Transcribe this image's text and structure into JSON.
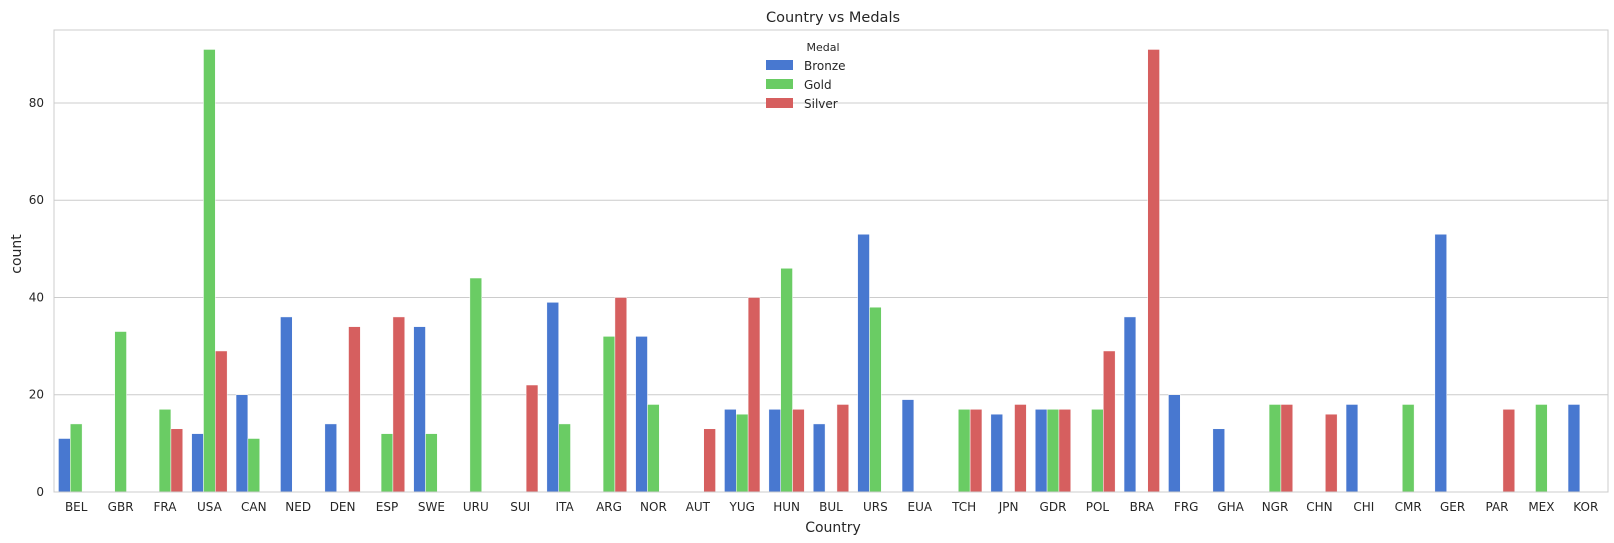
{
  "chart_data": {
    "type": "bar",
    "title": "Country vs Medals",
    "xlabel": "Country",
    "ylabel": "count",
    "ylim": [
      0,
      95
    ],
    "yticks": [
      0,
      20,
      40,
      60,
      80
    ],
    "grid": "horizontal",
    "legend": {
      "title": "Medal",
      "placement": "top-center"
    },
    "categories": [
      "BEL",
      "GBR",
      "FRA",
      "USA",
      "CAN",
      "NED",
      "DEN",
      "ESP",
      "SWE",
      "URU",
      "SUI",
      "ITA",
      "ARG",
      "NOR",
      "AUT",
      "YUG",
      "HUN",
      "BUL",
      "URS",
      "EUA",
      "TCH",
      "JPN",
      "GDR",
      "POL",
      "BRA",
      "FRG",
      "GHA",
      "NGR",
      "CHN",
      "CHI",
      "CMR",
      "GER",
      "PAR",
      "MEX",
      "KOR"
    ],
    "series": [
      {
        "name": "Bronze",
        "color": "#4878d0",
        "values": [
          11,
          0,
          0,
          12,
          20,
          36,
          14,
          0,
          34,
          0,
          0,
          39,
          0,
          32,
          0,
          17,
          17,
          14,
          53,
          19,
          0,
          16,
          17,
          0,
          36,
          20,
          13,
          0,
          0,
          18,
          0,
          53,
          0,
          0,
          18
        ]
      },
      {
        "name": "Gold",
        "color": "#6acc64",
        "values": [
          14,
          33,
          17,
          91,
          11,
          0,
          0,
          12,
          12,
          44,
          0,
          14,
          32,
          18,
          0,
          16,
          46,
          0,
          38,
          0,
          17,
          0,
          17,
          17,
          0,
          0,
          0,
          18,
          0,
          0,
          18,
          0,
          0,
          18,
          0
        ]
      },
      {
        "name": "Silver",
        "color": "#d65f5f",
        "values": [
          0,
          0,
          13,
          29,
          0,
          0,
          34,
          36,
          0,
          0,
          22,
          0,
          40,
          0,
          13,
          40,
          17,
          18,
          0,
          0,
          17,
          18,
          17,
          29,
          91,
          0,
          0,
          18,
          16,
          0,
          0,
          0,
          17,
          0,
          0
        ]
      }
    ]
  }
}
